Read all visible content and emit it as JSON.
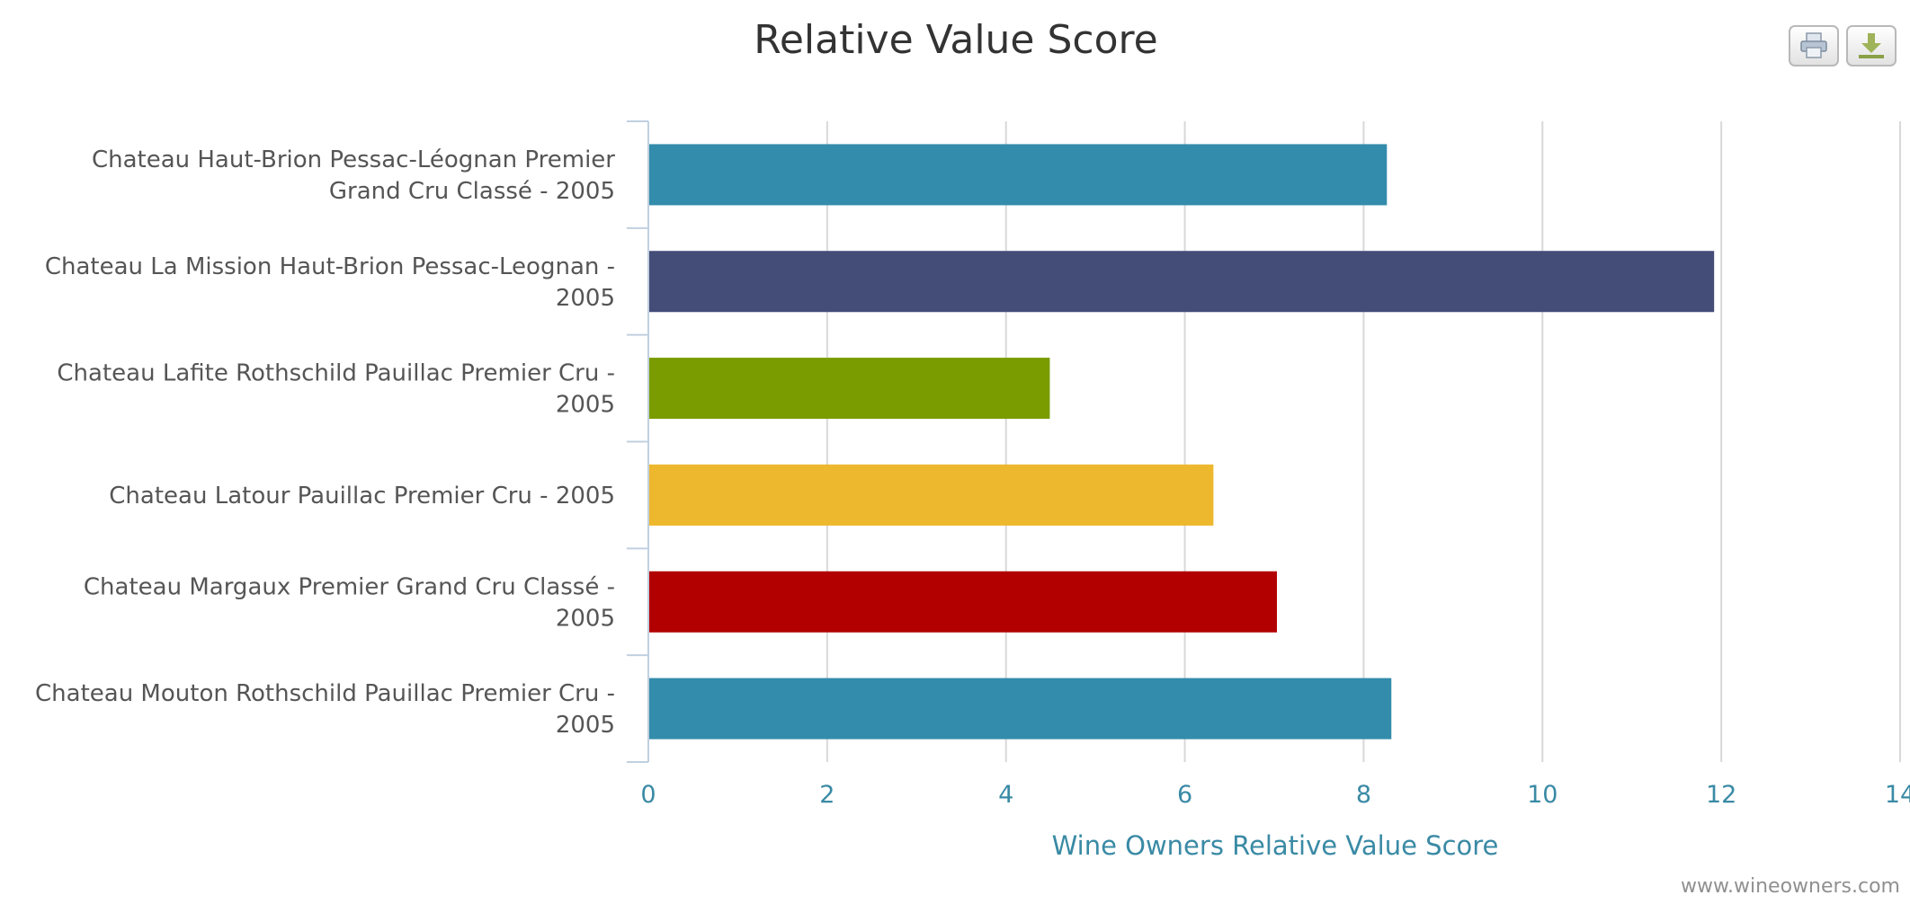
{
  "chart_data": {
    "type": "bar",
    "orientation": "horizontal",
    "title": "Relative Value Score",
    "xlabel": "Wine Owners Relative Value Score",
    "ylabel": "",
    "xlim": [
      0,
      14
    ],
    "ticks": [
      0,
      2,
      4,
      6,
      8,
      10,
      12,
      14
    ],
    "grid": true,
    "categories": [
      [
        "Chateau Haut-Brion Pessac-Léognan Premier",
        "Grand Cru Classé - 2005"
      ],
      [
        "Chateau La Mission Haut-Brion Pessac-Leognan -",
        "2005"
      ],
      [
        "Chateau Lafite Rothschild Pauillac Premier Cru -",
        "2005"
      ],
      [
        "Chateau Latour Pauillac Premier Cru - 2005"
      ],
      [
        "Chateau Margaux Premier Grand Cru Classé -",
        "2005"
      ],
      [
        "Chateau Mouton Rothschild Pauillac Premier Cru -",
        "2005"
      ]
    ],
    "values": [
      8.26,
      11.92,
      4.49,
      6.32,
      7.03,
      8.31
    ],
    "colors": [
      "#338cab",
      "#444c78",
      "#7a9c01",
      "#edb82d",
      "#b20000",
      "#338cab"
    ]
  },
  "credit": "www.wineowners.com",
  "toolbar": {
    "print_icon": "printer-icon",
    "download_icon": "download-icon"
  },
  "style": {
    "title_color": "#333333",
    "category_label_color": "#555555",
    "axis_label_color": "#3a8aa5",
    "grid_color": "#d8d8d8",
    "axis_line_color": "#c0d0e0"
  }
}
